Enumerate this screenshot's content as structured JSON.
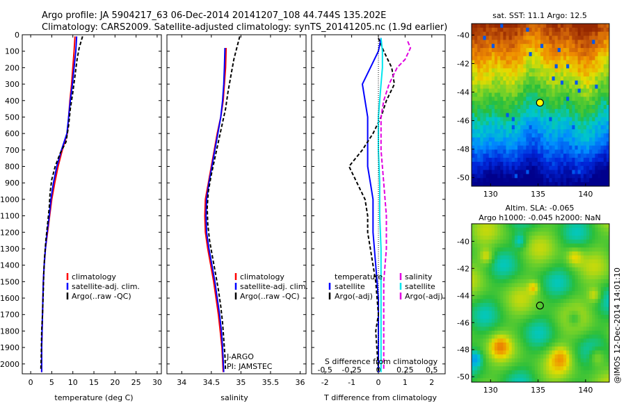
{
  "header": {
    "line1": "Argo profile: JA 5904217_63 06-Dec-2014 20141207_108 44.744S 135.202E",
    "line2": "Climatology: CARS2009. Satellite-adjusted climatology: synTS_20141205.nc (1.9d earlier)"
  },
  "side_label": "@IMOS 12-Dec-2014 14:01:10",
  "colors": {
    "climatology": "#ff0000",
    "satellite": "#0000ff",
    "argo": "#000000",
    "sal_satellite": "#00e5ee",
    "sal_argo": "#e000e0"
  },
  "chart_data": [
    {
      "id": "temperature",
      "type": "line",
      "xlabel": "temperature (deg C)",
      "ylabel": "",
      "xlim": [
        -2,
        31
      ],
      "ylim": [
        2060,
        0
      ],
      "xticks": [
        0,
        5,
        10,
        15,
        20,
        25,
        30
      ],
      "yticks": [
        0,
        100,
        200,
        300,
        400,
        500,
        600,
        700,
        800,
        900,
        1000,
        1100,
        1200,
        1300,
        1400,
        1500,
        1600,
        1700,
        1800,
        1900,
        2000
      ],
      "legend": [
        "climatology",
        "satellite-adj. clim.",
        "Argo(..raw -QC)"
      ],
      "series": [
        {
          "name": "climatology",
          "color": "#ff0000",
          "dash": "",
          "points": [
            [
              10.5,
              10
            ],
            [
              10.3,
              100
            ],
            [
              10.0,
              200
            ],
            [
              9.7,
              300
            ],
            [
              9.3,
              400
            ],
            [
              9.0,
              500
            ],
            [
              8.7,
              600
            ],
            [
              7.5,
              700
            ],
            [
              6.5,
              800
            ],
            [
              5.7,
              900
            ],
            [
              5.0,
              1000
            ],
            [
              4.5,
              1100
            ],
            [
              4.0,
              1200
            ],
            [
              3.5,
              1300
            ],
            [
              3.2,
              1400
            ],
            [
              3.0,
              1500
            ],
            [
              2.9,
              1600
            ],
            [
              2.8,
              1700
            ],
            [
              2.7,
              1800
            ],
            [
              2.6,
              1900
            ],
            [
              2.6,
              2050
            ]
          ]
        },
        {
          "name": "satellite-adj. clim.",
          "color": "#0000ff",
          "dash": "",
          "points": [
            [
              10.9,
              10
            ],
            [
              10.7,
              100
            ],
            [
              10.3,
              200
            ],
            [
              9.9,
              300
            ],
            [
              9.4,
              400
            ],
            [
              9.0,
              500
            ],
            [
              8.6,
              600
            ],
            [
              7.3,
              700
            ],
            [
              6.2,
              800
            ],
            [
              5.4,
              900
            ],
            [
              4.8,
              1000
            ],
            [
              4.4,
              1100
            ],
            [
              3.9,
              1200
            ],
            [
              3.5,
              1300
            ],
            [
              3.2,
              1400
            ],
            [
              3.0,
              1500
            ],
            [
              2.9,
              1600
            ],
            [
              2.8,
              1700
            ],
            [
              2.7,
              1800
            ],
            [
              2.6,
              1900
            ],
            [
              2.6,
              2050
            ]
          ]
        },
        {
          "name": "Argo(..raw -QC)",
          "color": "#000000",
          "dash": "5,3",
          "points": [
            [
              12.3,
              10
            ],
            [
              11.5,
              80
            ],
            [
              11.0,
              150
            ],
            [
              10.5,
              250
            ],
            [
              10.0,
              350
            ],
            [
              9.4,
              450
            ],
            [
              9.0,
              550
            ],
            [
              8.4,
              650
            ],
            [
              7.0,
              720
            ],
            [
              5.8,
              800
            ],
            [
              5.0,
              880
            ],
            [
              4.6,
              960
            ],
            [
              4.4,
              1050
            ],
            [
              4.0,
              1150
            ],
            [
              3.6,
              1250
            ],
            [
              3.3,
              1350
            ],
            [
              3.1,
              1450
            ],
            [
              3.0,
              1550
            ],
            [
              2.8,
              1700
            ],
            [
              2.6,
              1800
            ],
            [
              2.5,
              1950
            ],
            [
              2.4,
              2040
            ]
          ]
        }
      ]
    },
    {
      "id": "salinity",
      "type": "line",
      "xlabel": "salinity",
      "ylabel": "",
      "xlim": [
        33.75,
        36.1
      ],
      "ylim": [
        2060,
        0
      ],
      "xticks": [
        34,
        34.5,
        35,
        35.5,
        36
      ],
      "legend": [
        "climatology",
        "satellite-adj. clim.",
        "Argo(..raw -QC)"
      ],
      "annotations": [
        "J-ARGO",
        "PI: JAMSTEC"
      ],
      "series": [
        {
          "name": "climatology",
          "color": "#ff0000",
          "dash": "",
          "points": [
            [
              34.75,
              80
            ],
            [
              34.74,
              200
            ],
            [
              34.72,
              300
            ],
            [
              34.7,
              400
            ],
            [
              34.66,
              500
            ],
            [
              34.6,
              600
            ],
            [
              34.55,
              700
            ],
            [
              34.5,
              800
            ],
            [
              34.45,
              900
            ],
            [
              34.4,
              1000
            ],
            [
              34.39,
              1100
            ],
            [
              34.4,
              1200
            ],
            [
              34.44,
              1300
            ],
            [
              34.49,
              1400
            ],
            [
              34.54,
              1500
            ],
            [
              34.58,
              1600
            ],
            [
              34.62,
              1700
            ],
            [
              34.65,
              1800
            ],
            [
              34.68,
              1900
            ],
            [
              34.7,
              2050
            ]
          ]
        },
        {
          "name": "satellite-adj. clim.",
          "color": "#0000ff",
          "dash": "",
          "points": [
            [
              34.73,
              80
            ],
            [
              34.72,
              200
            ],
            [
              34.71,
              300
            ],
            [
              34.69,
              400
            ],
            [
              34.66,
              500
            ],
            [
              34.61,
              600
            ],
            [
              34.56,
              700
            ],
            [
              34.51,
              800
            ],
            [
              34.46,
              900
            ],
            [
              34.42,
              1000
            ],
            [
              34.41,
              1100
            ],
            [
              34.42,
              1200
            ],
            [
              34.46,
              1300
            ],
            [
              34.51,
              1400
            ],
            [
              34.56,
              1500
            ],
            [
              34.6,
              1600
            ],
            [
              34.64,
              1700
            ],
            [
              34.67,
              1800
            ],
            [
              34.69,
              1900
            ],
            [
              34.71,
              2050
            ]
          ]
        },
        {
          "name": "Argo(..raw -QC)",
          "color": "#000000",
          "dash": "5,3",
          "points": [
            [
              34.98,
              10
            ],
            [
              34.93,
              80
            ],
            [
              34.88,
              150
            ],
            [
              34.83,
              250
            ],
            [
              34.78,
              350
            ],
            [
              34.74,
              450
            ],
            [
              34.68,
              550
            ],
            [
              34.62,
              650
            ],
            [
              34.56,
              750
            ],
            [
              34.5,
              850
            ],
            [
              34.45,
              950
            ],
            [
              34.43,
              1050
            ],
            [
              34.44,
              1150
            ],
            [
              34.47,
              1250
            ],
            [
              34.52,
              1350
            ],
            [
              34.57,
              1450
            ],
            [
              34.62,
              1550
            ],
            [
              34.66,
              1650
            ],
            [
              34.69,
              1750
            ],
            [
              34.71,
              1850
            ],
            [
              34.73,
              1950
            ],
            [
              34.74,
              2040
            ]
          ]
        }
      ]
    },
    {
      "id": "differences",
      "type": "line",
      "xlabel": "T difference from climatology",
      "xlabel_top": "S difference from climatology",
      "xlim": [
        -2.5,
        2.5
      ],
      "ylim": [
        2060,
        0
      ],
      "xticks": [
        -2,
        -1,
        0,
        1,
        2
      ],
      "xticks_s": [
        -0.5,
        -0.25,
        0,
        0.25,
        0.5
      ],
      "legend_titles": [
        "temperature",
        "salinity"
      ],
      "legend": [
        "satellite",
        "Argo(-adj)",
        "satellite",
        "Argo(-adj)"
      ],
      "series": [
        {
          "name": "satellite",
          "color": "#0000ff",
          "dash": "",
          "points": [
            [
              0.1,
              20
            ],
            [
              0.0,
              100
            ],
            [
              -0.3,
              200
            ],
            [
              -0.6,
              300
            ],
            [
              -0.5,
              400
            ],
            [
              -0.4,
              500
            ],
            [
              -0.4,
              600
            ],
            [
              -0.4,
              700
            ],
            [
              -0.4,
              800
            ],
            [
              -0.3,
              900
            ],
            [
              -0.2,
              1000
            ],
            [
              -0.2,
              1100
            ],
            [
              -0.2,
              1200
            ],
            [
              -0.1,
              1400
            ],
            [
              0.0,
              1600
            ],
            [
              0.0,
              1800
            ],
            [
              0.0,
              2050
            ]
          ]
        },
        {
          "name": "Argo(-adj)",
          "color": "#000000",
          "dash": "5,3",
          "points": [
            [
              0.0,
              20
            ],
            [
              0.2,
              100
            ],
            [
              0.5,
              200
            ],
            [
              0.6,
              300
            ],
            [
              0.3,
              400
            ],
            [
              0.1,
              500
            ],
            [
              -0.2,
              600
            ],
            [
              -0.6,
              700
            ],
            [
              -1.1,
              800
            ],
            [
              -0.8,
              900
            ],
            [
              -0.5,
              1000
            ],
            [
              -0.4,
              1100
            ],
            [
              -0.4,
              1200
            ],
            [
              -0.3,
              1300
            ],
            [
              -0.2,
              1400
            ],
            [
              -0.1,
              1500
            ],
            [
              0.0,
              1700
            ],
            [
              -0.1,
              1800
            ],
            [
              0.0,
              2040
            ]
          ]
        },
        {
          "name": "satellite",
          "color": "#00e5ee",
          "dash": "",
          "points": [
            [
              0.1,
              20
            ],
            [
              0.15,
              100
            ],
            [
              0.15,
              200
            ],
            [
              0.1,
              300
            ],
            [
              0.05,
              400
            ],
            [
              0.0,
              500
            ],
            [
              0.0,
              700
            ],
            [
              0.05,
              900
            ],
            [
              0.05,
              1100
            ],
            [
              0.1,
              1300
            ],
            [
              0.1,
              1500
            ],
            [
              0.1,
              1700
            ],
            [
              0.1,
              1900
            ],
            [
              0.1,
              2050
            ]
          ]
        },
        {
          "name": "Argo(-adj)",
          "color": "#e000e0",
          "dash": "6,3",
          "points": [
            [
              1.1,
              40
            ],
            [
              1.2,
              80
            ],
            [
              1.0,
              150
            ],
            [
              0.7,
              200
            ],
            [
              0.4,
              300
            ],
            [
              0.2,
              400
            ],
            [
              0.1,
              500
            ],
            [
              0.1,
              700
            ],
            [
              0.2,
              900
            ],
            [
              0.3,
              1100
            ],
            [
              0.3,
              1300
            ],
            [
              0.2,
              1500
            ],
            [
              0.2,
              1700
            ],
            [
              0.2,
              1900
            ],
            [
              0.2,
              2040
            ]
          ]
        }
      ]
    },
    {
      "id": "sst_map",
      "type": "heatmap",
      "title": "sat. SST: 11.1  Argo: 12.5",
      "xlim": [
        128,
        142.5
      ],
      "ylim": [
        -50.6,
        -39.2
      ],
      "xticks": [
        130,
        135,
        140
      ],
      "yticks": [
        -40,
        -42,
        -44,
        -46,
        -48,
        -50
      ],
      "marker": [
        135.2,
        -44.744
      ]
    },
    {
      "id": "sla_map",
      "type": "heatmap",
      "title_line1": "Altim. SLA: -0.065",
      "title_line2": "Argo h1000: -0.045 h2000: NaN",
      "xlim": [
        128,
        142.5
      ],
      "ylim": [
        -50.4,
        -38.7
      ],
      "xticks": [
        130,
        135,
        140
      ],
      "yticks": [
        -40,
        -42,
        -44,
        -46,
        -48,
        -50
      ],
      "marker": [
        135.2,
        -44.744
      ]
    }
  ]
}
